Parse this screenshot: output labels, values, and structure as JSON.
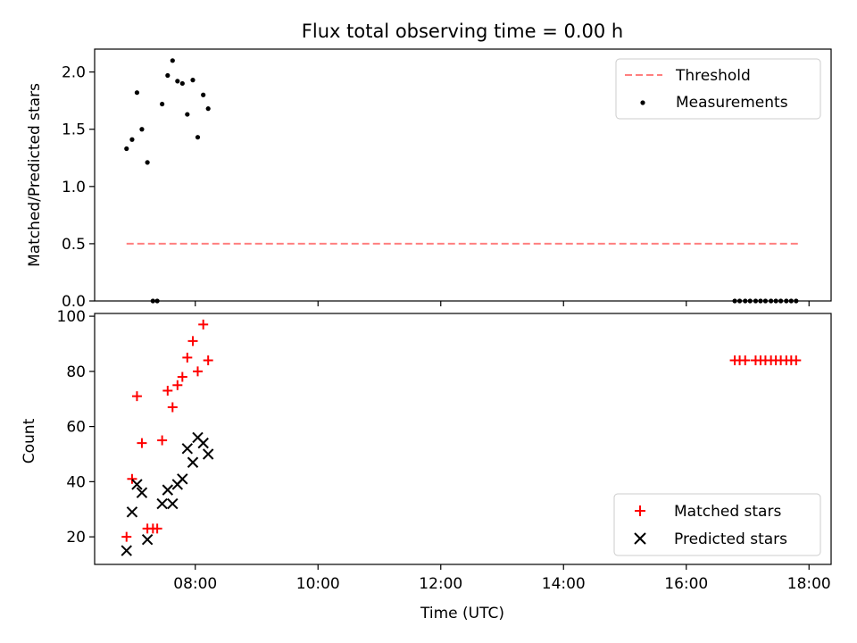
{
  "figure": {
    "title": "Flux total observing time = 0.00 h"
  },
  "chart_data": [
    {
      "type": "scatter",
      "panel": "top",
      "title": "Flux total observing time = 0.00 h",
      "xlabel": "",
      "ylabel": "Matched/Predicted stars",
      "xlim_hours": [
        6.36,
        18.36
      ],
      "ylim": [
        0,
        2.2
      ],
      "yticks": [
        "0.0",
        "0.5",
        "1.0",
        "1.5",
        "2.0"
      ],
      "legend_position": "upper right",
      "series": [
        {
          "name": "Threshold",
          "kind": "dashed-line",
          "color": "#ff7f7f",
          "x_hours": [
            6.88,
            17.83
          ],
          "y": [
            0.5,
            0.5
          ]
        },
        {
          "name": "Measurements",
          "kind": "dots",
          "color": "#000000",
          "x_hours": [
            6.88,
            6.97,
            7.05,
            7.13,
            7.22,
            7.31,
            7.38,
            7.46,
            7.55,
            7.63,
            7.71,
            7.79,
            7.87,
            7.96,
            8.04,
            8.13,
            8.21,
            16.79,
            16.87,
            16.96,
            17.04,
            17.13,
            17.21,
            17.29,
            17.38,
            17.46,
            17.54,
            17.63,
            17.71,
            17.79
          ],
          "y": [
            1.33,
            1.41,
            1.82,
            1.5,
            1.21,
            0,
            0,
            1.72,
            1.97,
            2.1,
            1.92,
            1.9,
            1.63,
            1.93,
            1.43,
            1.8,
            1.68,
            0,
            0,
            0,
            0,
            0,
            0,
            0,
            0,
            0,
            0,
            0,
            0,
            0
          ]
        }
      ]
    },
    {
      "type": "scatter",
      "panel": "bottom",
      "xlabel": "Time (UTC)",
      "ylabel": "Count",
      "xlim_hours": [
        6.36,
        18.36
      ],
      "ylim": [
        10,
        101
      ],
      "xticks": [
        "08:00",
        "10:00",
        "12:00",
        "14:00",
        "16:00",
        "18:00"
      ],
      "yticks": [
        "20",
        "40",
        "60",
        "80",
        "100"
      ],
      "legend_position": "lower right",
      "series": [
        {
          "name": "Matched stars",
          "marker": "+",
          "color": "#ff0000",
          "x_hours": [
            6.88,
            6.97,
            7.05,
            7.13,
            7.22,
            7.31,
            7.38,
            7.46,
            7.55,
            7.63,
            7.71,
            7.79,
            7.87,
            7.96,
            8.04,
            8.13,
            8.21,
            16.79,
            16.87,
            16.96,
            17.13,
            17.21,
            17.29,
            17.38,
            17.46,
            17.54,
            17.63,
            17.71,
            17.79
          ],
          "y": [
            20,
            41,
            71,
            54,
            23,
            23,
            23,
            55,
            73,
            67,
            75,
            78,
            85,
            91,
            80,
            97,
            84,
            84,
            84,
            84,
            84,
            84,
            84,
            84,
            84,
            84,
            84,
            84,
            84
          ]
        },
        {
          "name": "Predicted stars",
          "marker": "x",
          "color": "#000000",
          "x_hours": [
            6.88,
            6.97,
            7.05,
            7.13,
            7.22,
            7.46,
            7.55,
            7.63,
            7.71,
            7.79,
            7.87,
            7.96,
            8.04,
            8.13,
            8.21
          ],
          "y": [
            15,
            29,
            39,
            36,
            19,
            32,
            37,
            32,
            39,
            41,
            52,
            47,
            56,
            54,
            50
          ]
        }
      ]
    }
  ]
}
